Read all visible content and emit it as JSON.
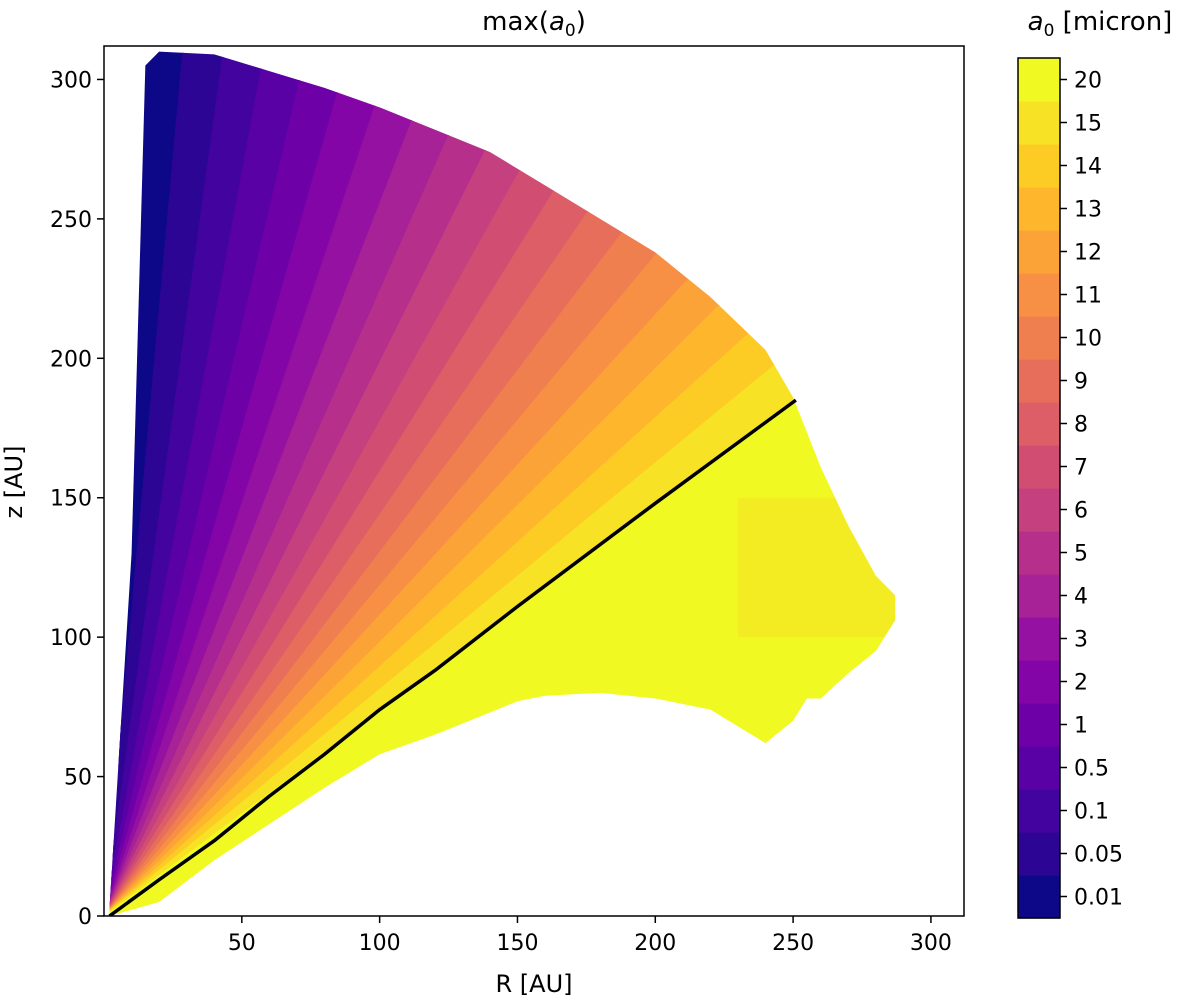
{
  "chart_data": {
    "type": "heatmap",
    "title": "max(a₀)",
    "title_parts": {
      "base": "max(",
      "var": "a",
      "sub": "0",
      "close": ")"
    },
    "xlabel": "R [AU]",
    "ylabel": "z [AU]",
    "xlim": [
      0,
      312
    ],
    "ylim": [
      0,
      312
    ],
    "xticks": [
      50,
      100,
      150,
      200,
      250,
      300
    ],
    "yticks": [
      0,
      50,
      100,
      150,
      200,
      250,
      300
    ],
    "grid": false,
    "colorbar": {
      "label": "a₀ [micron]",
      "label_parts": {
        "var": "a",
        "sub": "0",
        "unit": " [micron]"
      },
      "levels": [
        "0.01",
        "0.05",
        "0.1",
        "0.5",
        "1",
        "2",
        "3",
        "4",
        "5",
        "6",
        "7",
        "8",
        "9",
        "10",
        "11",
        "12",
        "13",
        "14",
        "15",
        "20"
      ],
      "colors": [
        "#0d0887",
        "#2c0594",
        "#43039e",
        "#5901a5",
        "#6e00a8",
        "#8305a7",
        "#9511a1",
        "#a72197",
        "#b6308b",
        "#c5407e",
        "#d14e72",
        "#dd5e66",
        "#e76e5b",
        "#f07f4f",
        "#f79044",
        "#fca338",
        "#feb72d",
        "#fccc25",
        "#f7e225",
        "#f0f921"
      ]
    },
    "series": [
      {
        "type": "line",
        "color": "#000000",
        "x": [
          2,
          20,
          40,
          60,
          80,
          100,
          120,
          150,
          200,
          251
        ],
        "y": [
          0,
          13,
          27,
          43,
          58,
          74,
          88,
          111,
          148,
          185
        ]
      }
    ],
    "regions": [
      {
        "level": "0.01",
        "description": "thin column along inner edge near R 10-20 AU, z 0-310 AU"
      },
      {
        "level": "20",
        "description": "lower wedge below the line, R up to ~255 AU, z up to ~125 AU"
      }
    ],
    "outer_boundary_x": [
      2,
      10,
      15,
      20,
      40,
      60,
      80,
      100,
      120,
      140,
      160,
      180,
      200,
      220,
      240,
      250,
      260,
      270,
      280,
      287,
      287,
      280,
      270,
      260,
      255,
      250,
      240,
      220,
      200,
      180,
      160,
      150,
      140,
      120,
      100,
      80,
      60,
      40,
      20,
      2
    ],
    "outer_boundary_y": [
      3,
      130,
      305,
      310,
      309,
      303,
      297,
      290,
      282,
      274,
      262,
      250,
      238,
      222,
      203,
      186,
      161,
      140,
      122,
      115,
      106,
      95,
      87,
      78,
      78,
      70,
      62,
      74,
      78,
      80,
      79,
      77,
      73,
      65,
      58,
      46,
      33,
      20,
      5,
      0
    ]
  }
}
